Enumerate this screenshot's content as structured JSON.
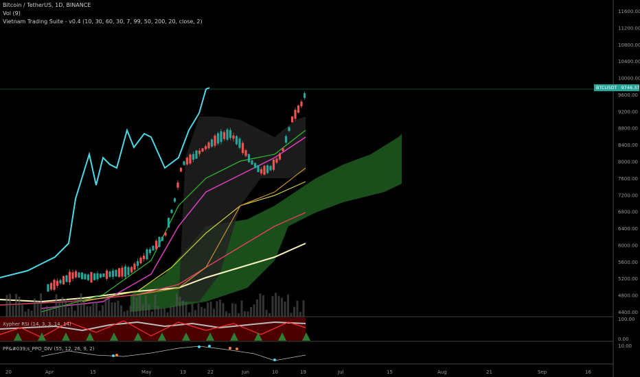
{
  "header": {
    "symbol_line": "Bitcoin / TetherUS, 1D, BINANCE",
    "vol_line": "Vol (9)",
    "suite_line": "Vietnam Trading Suite - v0.4 (10, 30, 60, 30, 7, 99, 50, 200, 20, close, 2)"
  },
  "price_tag": {
    "symbol": "BTCUSDT",
    "value": "9746.37",
    "color": "#26a69a"
  },
  "indicators": {
    "rsi_label": "Xypher RSI (14, 3, 3, 14, 14)",
    "rsi_ticks": [
      "100.00",
      "0.00"
    ],
    "ppo_label": "PP&#039;s_PPO_DIV (55, 12, 26, 9, 2)",
    "ppo_ticks": [
      "10.00"
    ]
  },
  "colors": {
    "up": "#26a69a",
    "down": "#ef5350",
    "cyan": "#4dd9e8",
    "cloud": "#1f5c1f",
    "rsi_band": "#8b0000",
    "ma_yellow": "#f0e68c",
    "ma_pink": "#e040c0"
  },
  "chart_data": {
    "type": "line",
    "y_axis": {
      "ticks": [
        "11600.00",
        "11200.00",
        "10800.00",
        "10400.00",
        "10000.00",
        "9600.00",
        "9200.00",
        "8800.00",
        "8400.00",
        "8000.00",
        "7600.00",
        "7200.00",
        "6800.00",
        "6400.00",
        "6000.00",
        "5600.00",
        "5200.00",
        "4800.00",
        "4400.00"
      ],
      "range": [
        4400,
        11600
      ]
    },
    "x_axis": {
      "ticks": [
        "20",
        "Apr",
        "15",
        "May",
        "13",
        "22",
        "Jun",
        "10",
        "19",
        "Jul",
        "15",
        "Aug",
        "21",
        "Sep",
        "16"
      ]
    },
    "last_price": 9746.37
  }
}
